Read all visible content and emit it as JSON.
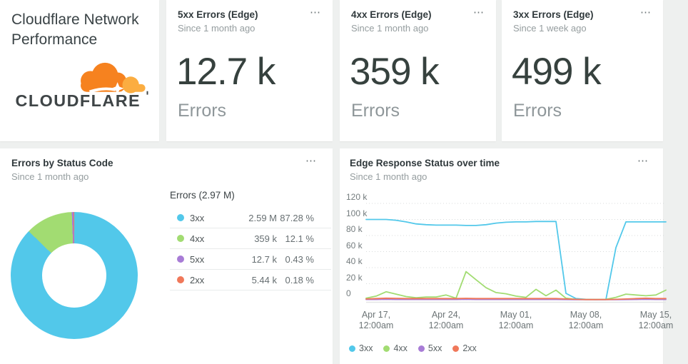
{
  "ui": {
    "menu_glyph": "⋯"
  },
  "colors": {
    "accent_3xx": "#52c8ea",
    "accent_4xx": "#a2dc72",
    "accent_5xx": "#a87cd6",
    "accent_2xx": "#f0785a",
    "background": "#eef0ef",
    "panel": "#ffffff"
  },
  "title_card": {
    "title": "Cloudflare Network Performance",
    "logo_wordmark": "CLOUDFLARE"
  },
  "stat_cards": [
    {
      "title": "5xx Errors (Edge)",
      "subtitle": "Since 1 month ago",
      "value": "12.7 k",
      "unit": "Errors"
    },
    {
      "title": "4xx Errors (Edge)",
      "subtitle": "Since 1 month ago",
      "value": "359 k",
      "unit": "Errors"
    },
    {
      "title": "3xx Errors (Edge)",
      "subtitle": "Since 1 week ago",
      "value": "499 k",
      "unit": "Errors"
    }
  ],
  "donut_panel": {
    "title": "Errors by Status Code",
    "subtitle": "Since 1 month ago",
    "table_title": "Errors (2.97 M)",
    "rows": [
      {
        "label": "3xx",
        "value": "2.59 M",
        "pct": "87.28 %",
        "color": "#52c8ea"
      },
      {
        "label": "4xx",
        "value": "359 k",
        "pct": "12.1 %",
        "color": "#a2dc72"
      },
      {
        "label": "5xx",
        "value": "12.7 k",
        "pct": "0.43 %",
        "color": "#a87cd6"
      },
      {
        "label": "2xx",
        "value": "5.44 k",
        "pct": "0.18 %",
        "color": "#f0785a"
      }
    ]
  },
  "chart_panel": {
    "title": "Edge Response Status over time",
    "subtitle": "Since 1 month ago",
    "legend": [
      "3xx",
      "4xx",
      "5xx",
      "2xx"
    ]
  },
  "chart_data": [
    {
      "type": "pie",
      "title": "Errors by Status Code",
      "subtitle": "Since 1 month ago",
      "total_label": "Errors (2.97 M)",
      "donut": true,
      "slices": [
        {
          "label": "3xx",
          "value_label": "2.59 M",
          "pct": 87.28,
          "color": "#52c8ea"
        },
        {
          "label": "4xx",
          "value_label": "359 k",
          "pct": 12.1,
          "color": "#a2dc72"
        },
        {
          "label": "5xx",
          "value_label": "12.7 k",
          "pct": 0.43,
          "color": "#a87cd6"
        },
        {
          "label": "2xx",
          "value_label": "5.44 k",
          "pct": 0.18,
          "color": "#f0785a"
        }
      ]
    },
    {
      "type": "line",
      "title": "Edge Response Status over time",
      "subtitle": "Since 1 month ago",
      "unit": "k (thousands of errors per day)",
      "ylim_k": [
        0,
        120
      ],
      "y_tick_labels": [
        "0",
        "20 k",
        "40 k",
        "60 k",
        "80 k",
        "100 k",
        "120 k"
      ],
      "x_tick_labels": [
        {
          "index": 1,
          "line1": "Apr 17,",
          "line2": "12:00am"
        },
        {
          "index": 8,
          "line1": "Apr 24,",
          "line2": "12:00am"
        },
        {
          "index": 15,
          "line1": "May 01,",
          "line2": "12:00am"
        },
        {
          "index": 22,
          "line1": "May 08,",
          "line2": "12:00am"
        },
        {
          "index": 29,
          "line1": "May 15,",
          "line2": "12:00am"
        }
      ],
      "x_range": "daily points, Apr 16 – May 16",
      "grid": true,
      "legend_position": "bottom-left",
      "series": [
        {
          "name": "3xx",
          "color": "#52c8ea",
          "values_k": [
            100,
            100,
            100,
            99,
            97,
            94.5,
            93.5,
            93,
            93,
            93,
            92.5,
            92.5,
            93.5,
            95.5,
            96.5,
            97,
            97,
            97.5,
            97.5,
            97.5,
            8,
            1.5,
            0.5,
            0.3,
            0.3,
            65,
            97,
            97,
            97,
            97,
            97
          ]
        },
        {
          "name": "4xx",
          "color": "#a2dc72",
          "values_k": [
            2,
            4.5,
            10,
            7,
            4,
            2.5,
            3.5,
            3.5,
            6,
            2,
            35,
            25,
            15,
            9,
            7.5,
            4.5,
            3,
            13,
            5,
            12,
            2,
            0.5,
            0.3,
            0.3,
            0.5,
            3,
            7,
            6,
            5,
            6,
            12
          ]
        },
        {
          "name": "5xx",
          "color": "#a87cd6",
          "values_k": [
            0.4,
            0.4,
            0.5,
            0.4,
            0.4,
            0.4,
            0.4,
            0.4,
            0.4,
            0.4,
            0.5,
            0.4,
            0.4,
            0.4,
            0.4,
            0.4,
            0.4,
            0.4,
            0.4,
            0.4,
            0.3,
            0.2,
            0.1,
            0.1,
            0.1,
            0.2,
            0.3,
            0.4,
            0.5,
            0.4,
            0.4
          ]
        },
        {
          "name": "2xx",
          "color": "#f0785a",
          "values_k": [
            1,
            1.5,
            2,
            1.8,
            1.5,
            1.5,
            1.5,
            1.5,
            1.5,
            1.5,
            1.8,
            1.5,
            1.5,
            1.5,
            1.5,
            1.5,
            1.5,
            1.5,
            1.5,
            1.5,
            1,
            0.5,
            0.3,
            0.3,
            0.3,
            0.5,
            1,
            1.5,
            2,
            1.5,
            1.5
          ]
        }
      ]
    }
  ]
}
